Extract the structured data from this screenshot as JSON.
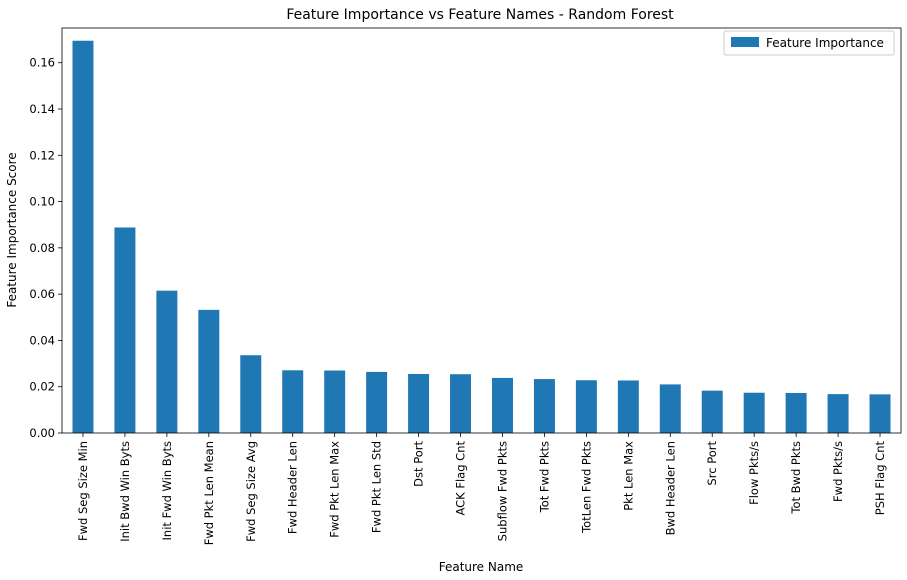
{
  "chart_data": {
    "type": "bar",
    "title": "Feature Importance vs Feature Names - Random Forest",
    "xlabel": "Feature Name",
    "ylabel": "Feature Importance Score",
    "ylim": [
      0,
      0.175
    ],
    "yticks": [
      "0.00",
      "0.02",
      "0.04",
      "0.06",
      "0.08",
      "0.10",
      "0.12",
      "0.14",
      "0.16"
    ],
    "legend_position": "top-right",
    "grid": false,
    "categories": [
      "Fwd Seg Size Min",
      "Init Bwd Win Byts",
      "Init Fwd Win Byts",
      "Fwd Pkt Len Mean",
      "Fwd Seg Size Avg",
      "Fwd Header Len",
      "Fwd Pkt Len Max",
      "Fwd Pkt Len Std",
      "Dst Port",
      "ACK Flag Cnt",
      "Subflow Fwd Pkts",
      "Tot Fwd Pkts",
      "TotLen Fwd Pkts",
      "Pkt Len Max",
      "Bwd Header Len",
      "Src Port",
      "Flow Pkts/s",
      "Tot Bwd Pkts",
      "Fwd Pkts/s",
      "PSH Flag Cnt"
    ],
    "series": [
      {
        "name": "Feature Importance",
        "color": "#1f77b4",
        "values": [
          0.1695,
          0.0888,
          0.0615,
          0.0532,
          0.0336,
          0.0271,
          0.027,
          0.0264,
          0.0255,
          0.0254,
          0.0238,
          0.0233,
          0.0228,
          0.0227,
          0.021,
          0.0183,
          0.0174,
          0.0173,
          0.0168,
          0.0167
        ]
      }
    ]
  }
}
